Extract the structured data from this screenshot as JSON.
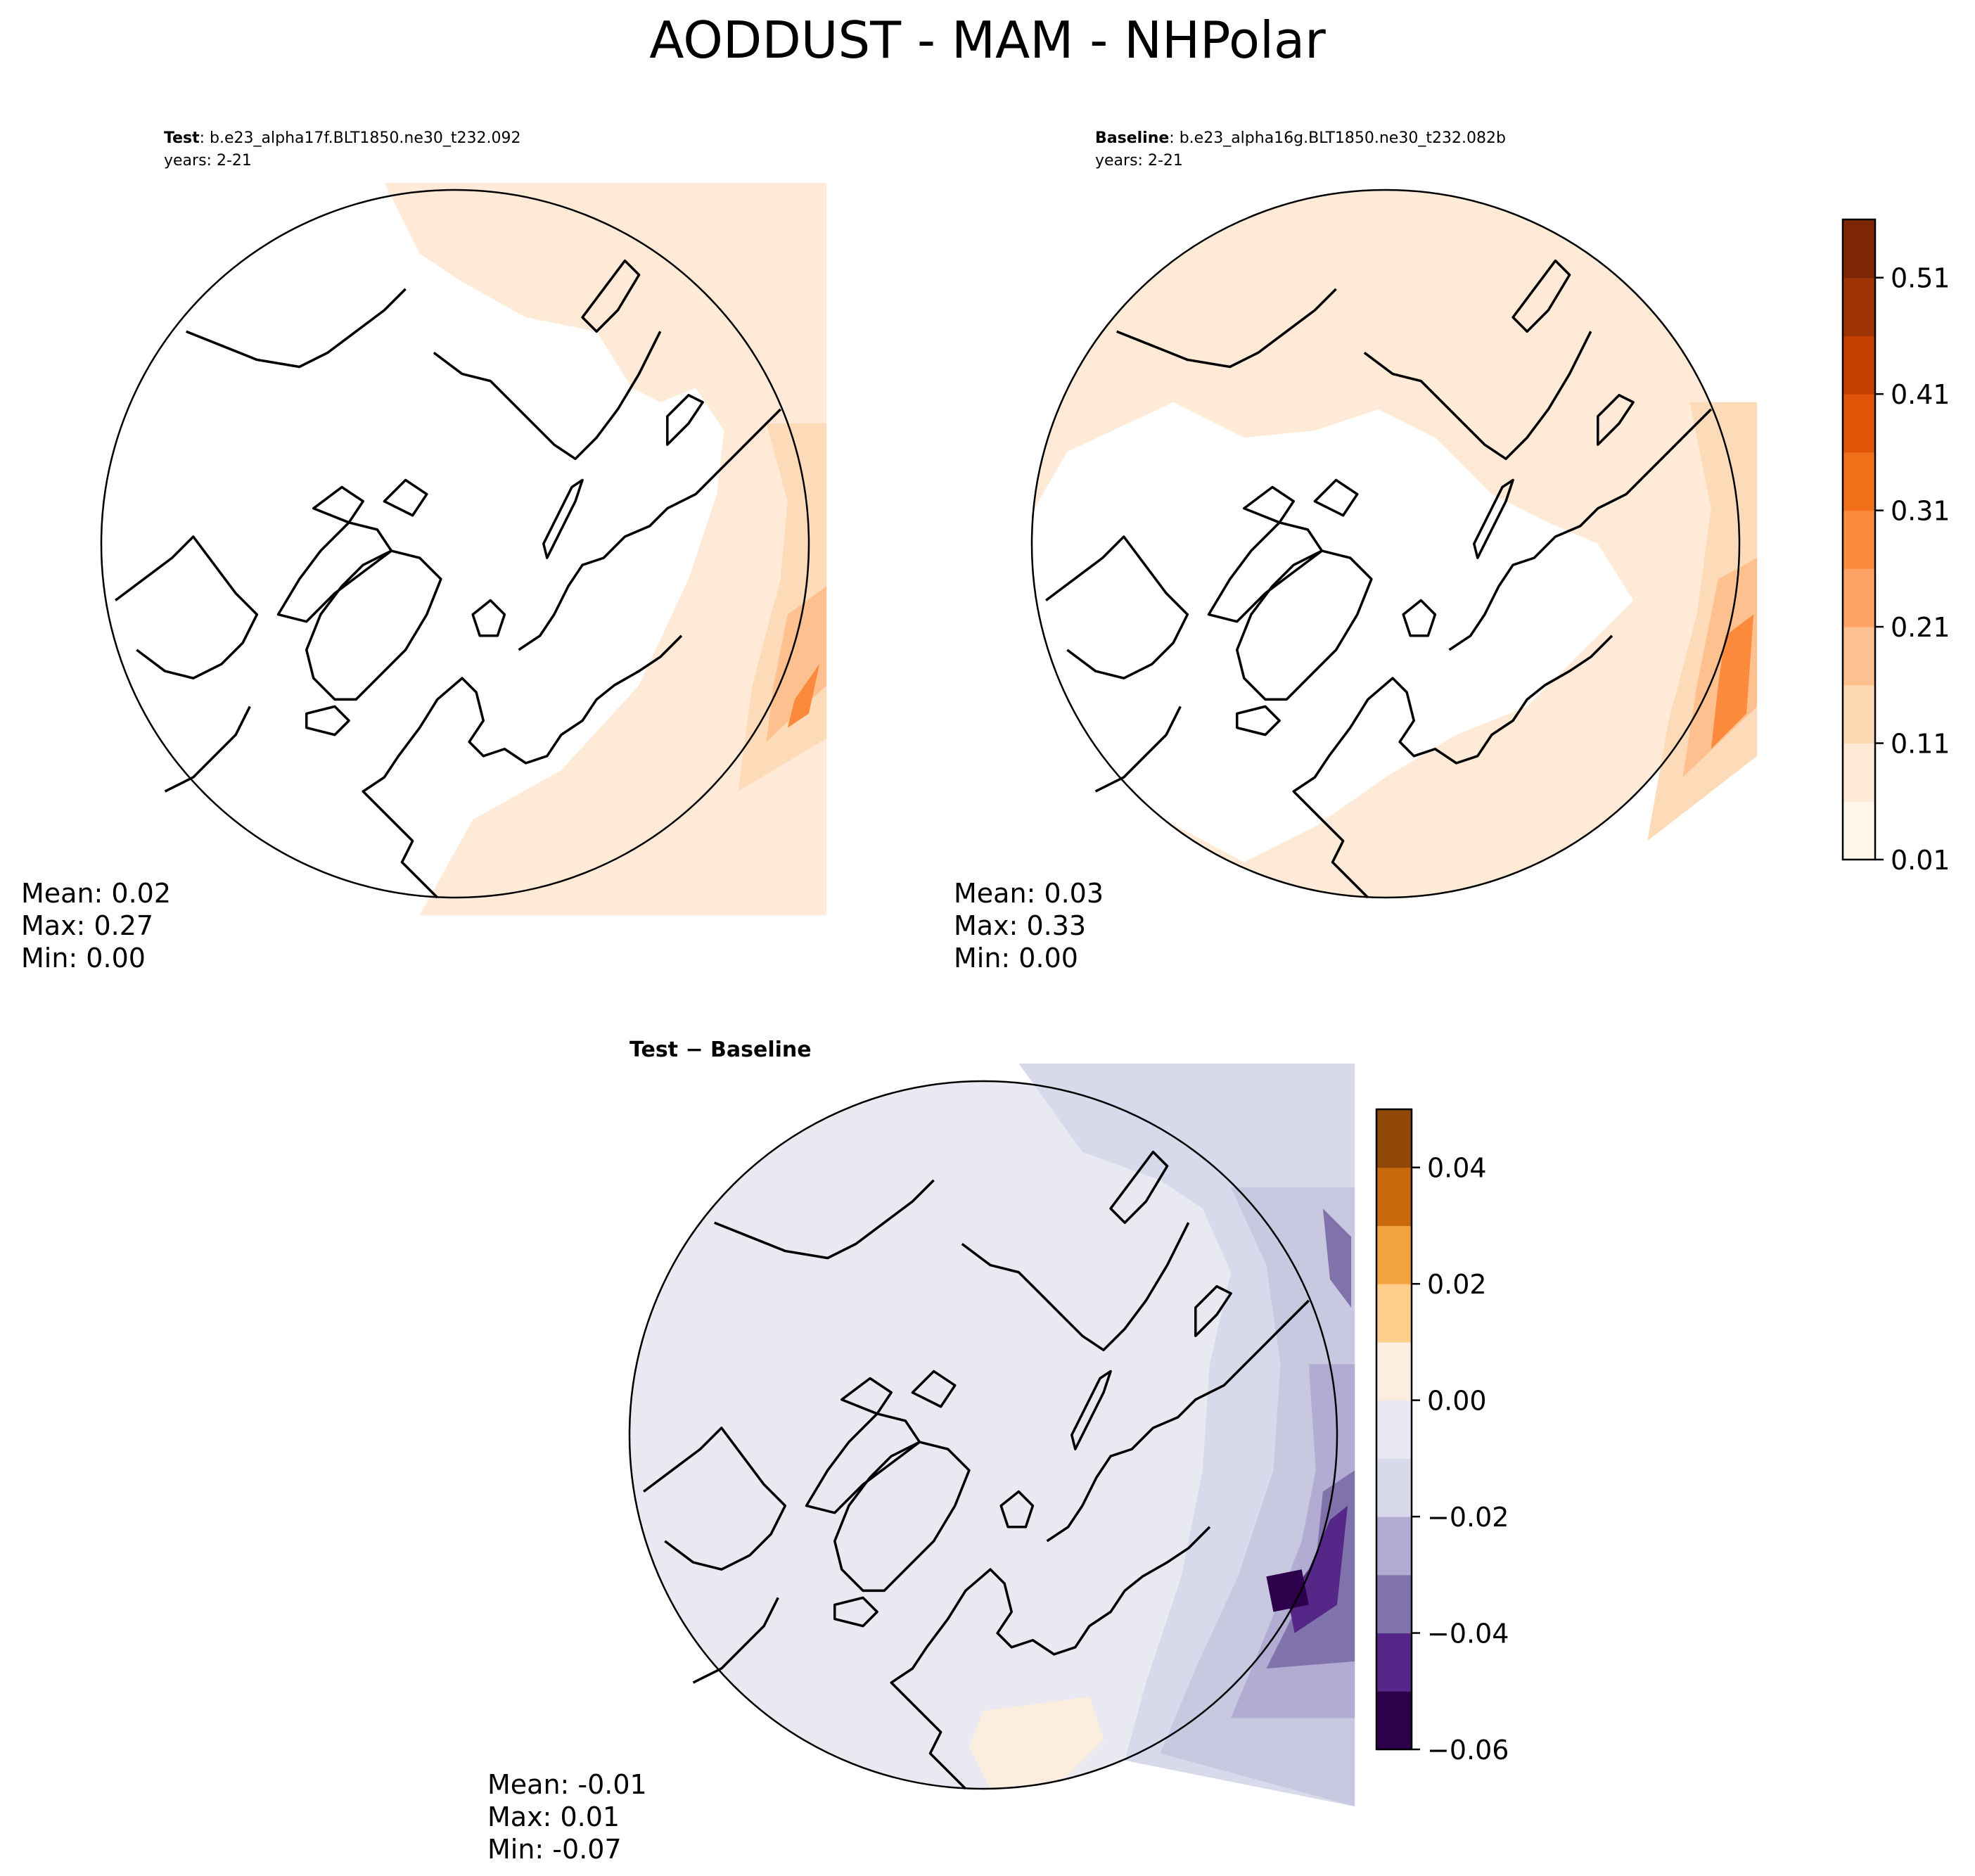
{
  "figure": {
    "title": "AODDUST - MAM - NHPolar"
  },
  "panels": {
    "test": {
      "label": "Test",
      "case": ": b.e23_alpha17f.BLT1850.ne30_t232.092",
      "years": "years: 2-21",
      "stats": {
        "mean": "Mean:  0.02",
        "max": "Max:  0.27",
        "min": "Min:  0.00"
      }
    },
    "baseline": {
      "label": "Baseline",
      "case": ": b.e23_alpha16g.BLT1850.ne30_t232.082b",
      "years": "years: 2-21",
      "stats": {
        "mean": "Mean:  0.03",
        "max": "Max:  0.33",
        "min": "Min:  0.00"
      }
    },
    "diff": {
      "label": "Test − Baseline",
      "stats": {
        "mean": "Mean: -0.01",
        "max": "Max:  0.01",
        "min": "Min: -0.07"
      }
    }
  },
  "chart_data": [
    {
      "type": "map",
      "projection": "north-polar-stereographic",
      "panel": "test",
      "colormap": "Oranges",
      "colorbar": {
        "min": 0.01,
        "max": 0.56,
        "levels": [
          0.01,
          0.06,
          0.11,
          0.16,
          0.21,
          0.26,
          0.31,
          0.36,
          0.41,
          0.46,
          0.51,
          0.56
        ],
        "tick_values": [
          0.01,
          0.11,
          0.21,
          0.31,
          0.41,
          0.51
        ],
        "tick_labels": [
          "0.01",
          "0.11",
          "0.21",
          "0.31",
          "0.41",
          "0.51"
        ]
      }
    },
    {
      "type": "map",
      "projection": "north-polar-stereographic",
      "panel": "baseline",
      "colormap": "Oranges",
      "shared_colorbar_with": "test"
    },
    {
      "type": "map",
      "projection": "north-polar-stereographic",
      "panel": "diff",
      "colormap": "PuOr",
      "colorbar": {
        "min": -0.06,
        "max": 0.05,
        "levels": [
          -0.06,
          -0.05,
          -0.04,
          -0.03,
          -0.02,
          -0.01,
          0.0,
          0.01,
          0.02,
          0.03,
          0.04,
          0.05
        ],
        "tick_values": [
          -0.06,
          -0.04,
          -0.02,
          0.0,
          0.02,
          0.04
        ],
        "tick_labels": [
          "−0.06",
          "−0.04",
          "−0.02",
          "0.00",
          "0.02",
          "0.04"
        ]
      }
    }
  ],
  "colors": {
    "oranges": [
      "#fff5eb",
      "#feead6",
      "#fdd8b3",
      "#fdc08e",
      "#fda262",
      "#fb8a3d",
      "#f3701b",
      "#e25508",
      "#c44001",
      "#9e3303",
      "#7f2704"
    ],
    "puor": [
      "#2d004b",
      "#542788",
      "#8073ac",
      "#b2abd2",
      "#d8daeb",
      "#e8e9f1",
      "#fbeede",
      "#fdcd8b",
      "#f1a340",
      "#c96a0f",
      "#8f4806"
    ]
  }
}
